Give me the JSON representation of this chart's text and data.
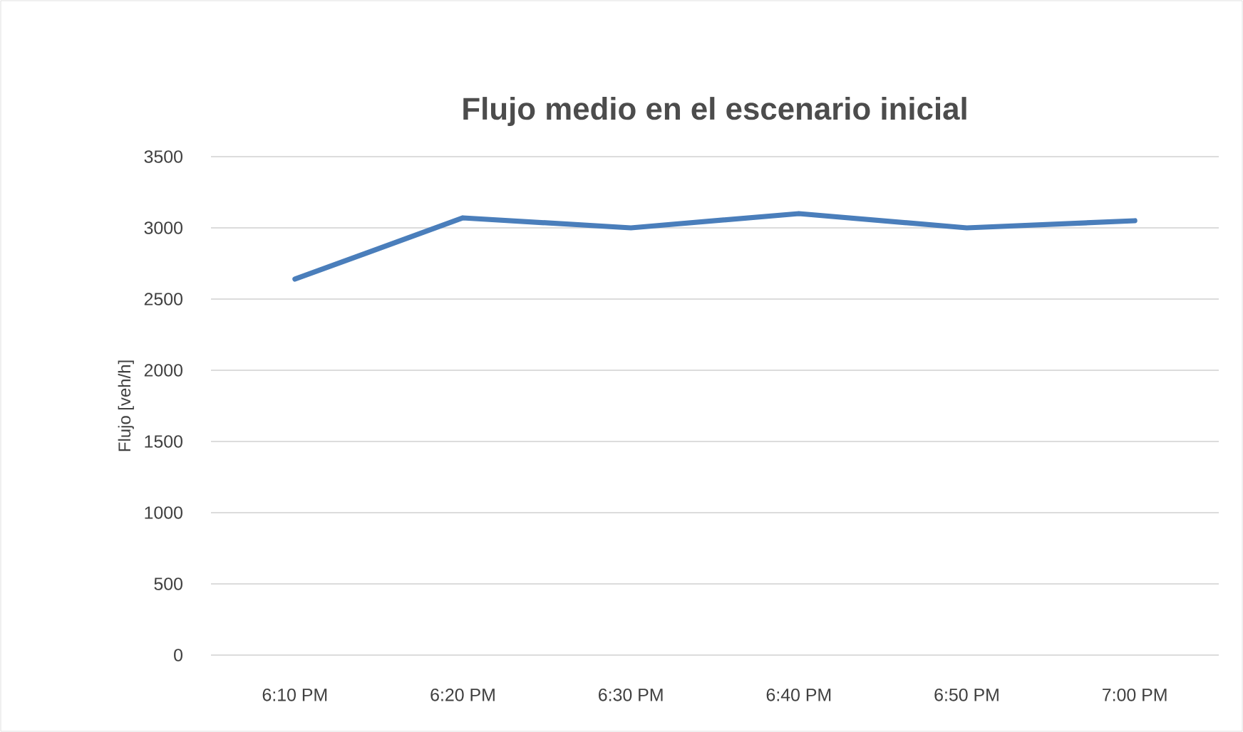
{
  "chart_data": {
    "type": "line",
    "title": "Flujo medio en el escenario inicial",
    "ylabel": "Flujo [veh/h]",
    "categories": [
      "6:10 PM",
      "6:20 PM",
      "6:30 PM",
      "6:40 PM",
      "6:50 PM",
      "7:00 PM"
    ],
    "series": [
      {
        "color": "#4a7ebb",
        "values": [
          2640,
          3070,
          3000,
          3100,
          3000,
          3050
        ]
      }
    ],
    "ylim": [
      0,
      3500
    ],
    "yticks": [
      0,
      500,
      1000,
      1500,
      2000,
      2500,
      3000,
      3500
    ],
    "grid": "y",
    "marker": "none",
    "line_style": "solid"
  }
}
